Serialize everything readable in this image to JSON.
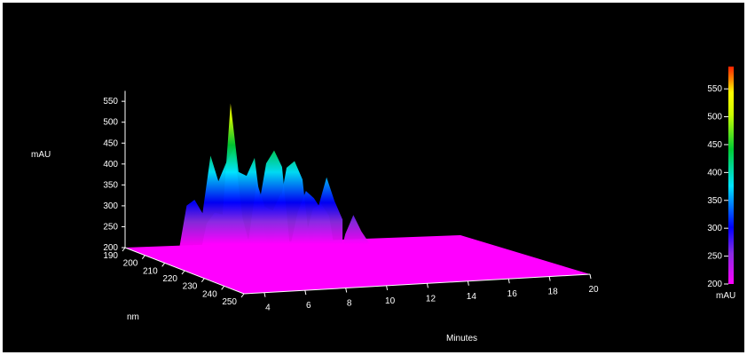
{
  "chart_data": {
    "type": "area",
    "style": "3d-surface",
    "z_label": "mAU",
    "x_label": "Minutes",
    "y_label": "nm",
    "zlim": [
      200,
      590
    ],
    "xlim": [
      3,
      20
    ],
    "ylim": [
      190,
      250
    ],
    "z_ticks": [
      "200",
      "250",
      "300",
      "350",
      "400",
      "450",
      "500",
      "550"
    ],
    "x_ticks": [
      "4",
      "6",
      "8",
      "10",
      "12",
      "14",
      "16",
      "18",
      "20"
    ],
    "y_ticks": [
      "190",
      "200",
      "210",
      "220",
      "230",
      "240",
      "250"
    ],
    "colorbar": {
      "label": "mAU",
      "ticks": [
        "200",
        "250",
        "300",
        "350",
        "400",
        "450",
        "500",
        "550"
      ],
      "range": [
        200,
        590
      ],
      "colors": [
        "#ff00ff",
        "#8a2be2",
        "#0000ff",
        "#00e5ff",
        "#00cc33",
        "#ccff00",
        "#ffff00",
        "#ff8800",
        "#ff2200"
      ]
    },
    "series": [
      {
        "x": [
          4.2,
          4.6,
          5.0,
          5.4,
          5.8,
          6.2,
          6.6,
          7.0,
          7.4,
          7.8,
          8.2,
          8.6,
          9.0,
          9.4,
          9.8,
          10.2,
          10.6,
          11.0,
          11.4
        ],
        "z": [
          215,
          325,
          338,
          305,
          442,
          380,
          425,
          458,
          292,
          218,
          308,
          418,
          448,
          408,
          215,
          300,
          348,
          330,
          300
        ]
      },
      {
        "x": [
          4.2,
          4.6,
          5.0,
          5.4,
          5.8,
          6.2,
          6.6,
          7.0,
          7.4,
          7.8,
          8.2,
          8.6,
          9.0,
          9.4,
          9.8,
          10.2,
          10.6,
          11.0,
          11.4
        ],
        "z": [
          210,
          300,
          325,
          320,
          585,
          420,
          410,
          452,
          300,
          215,
          320,
          425,
          440,
          395,
          220,
          330,
          398,
          340,
          295
        ]
      },
      {
        "x": [
          4.2,
          4.6,
          5.0,
          5.4,
          5.8,
          6.2,
          6.6,
          7.0,
          7.4,
          7.8,
          8.2,
          8.6,
          9.0,
          9.4,
          9.8,
          10.2,
          10.6,
          11.0,
          11.4
        ],
        "z": [
          205,
          260,
          280,
          285,
          420,
          360,
          350,
          390,
          260,
          210,
          280,
          350,
          360,
          330,
          210,
          285,
          330,
          290,
          260
        ]
      }
    ]
  }
}
